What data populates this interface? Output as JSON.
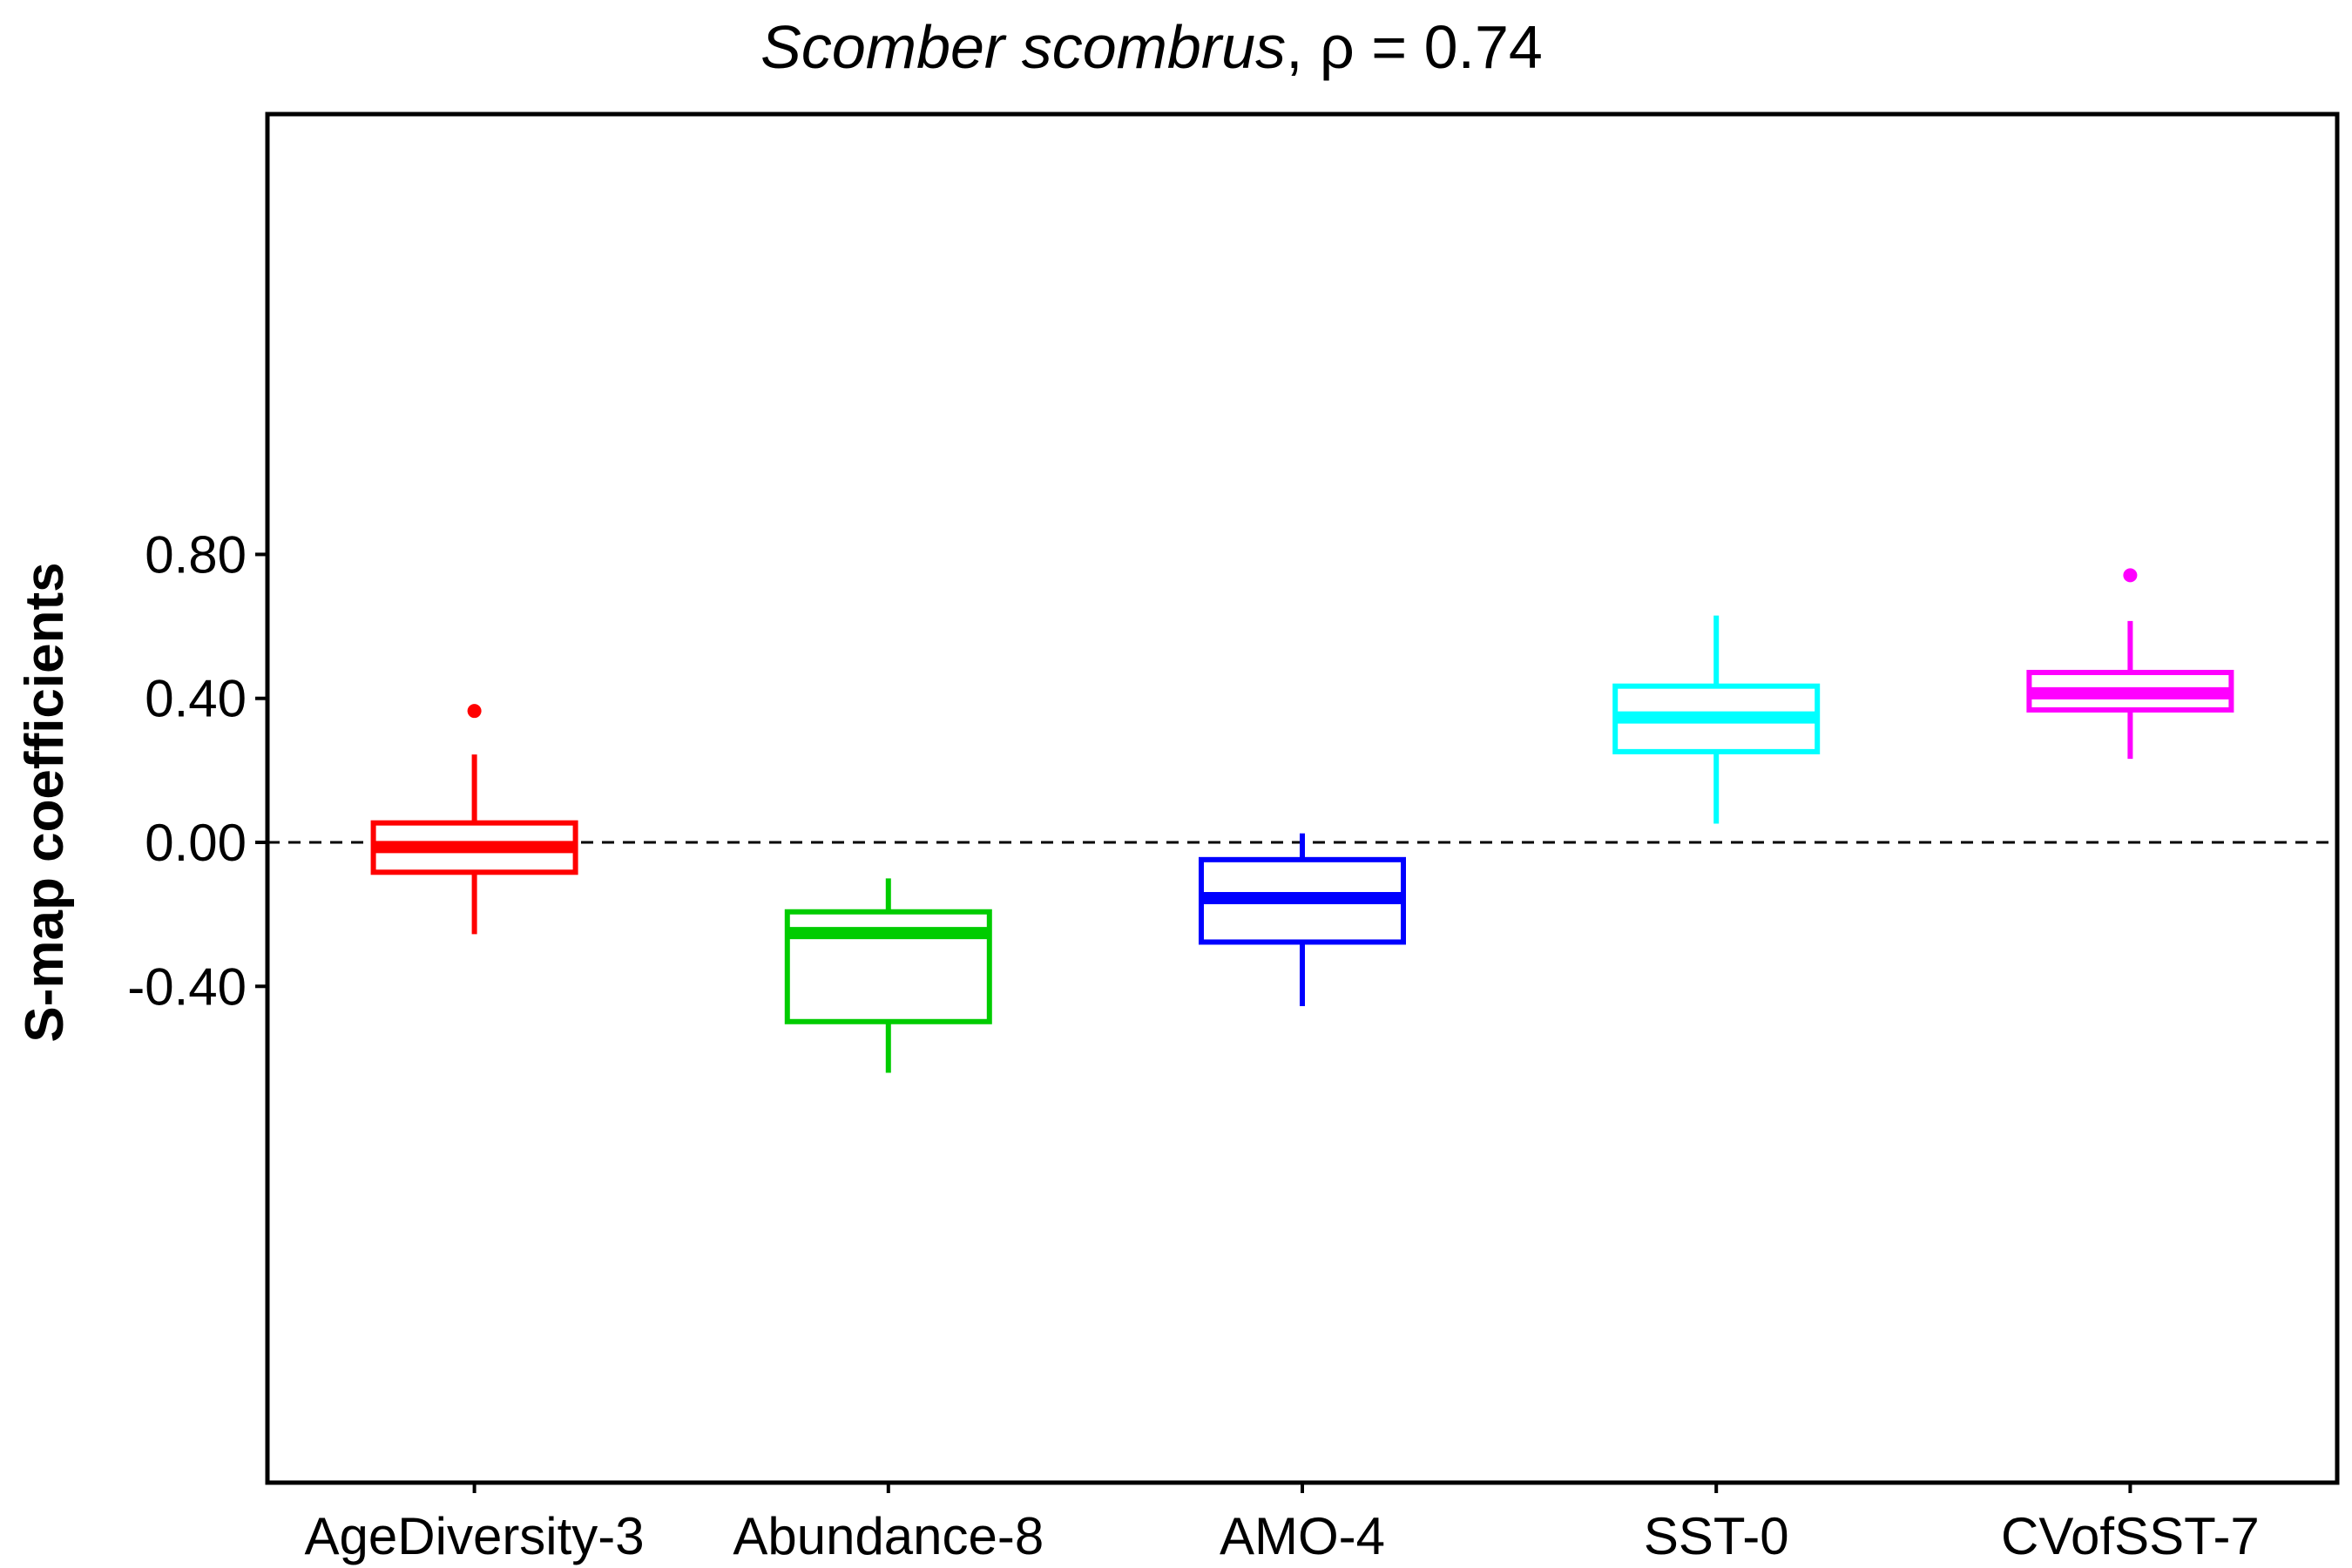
{
  "chart_data": {
    "type": "boxplot",
    "title": {
      "species": "Scomber scombrus",
      "suffix": ", ρ = 0.74"
    },
    "xlabel": "",
    "ylabel": "S-map coefficients",
    "ylim": [
      -0.7,
      0.81
    ],
    "yticks": [
      -0.4,
      0.0,
      0.4,
      0.8
    ],
    "ytick_labels": [
      "-0.40",
      "0.00",
      "0.40",
      "0.80"
    ],
    "reference_line": {
      "y": 0.0,
      "style": "dashed"
    },
    "grid": false,
    "series": [
      {
        "name": "AgeDiversity-3",
        "color": "#ff0000",
        "whisker_low": -0.255,
        "q1": -0.083,
        "median": -0.013,
        "q3": 0.054,
        "whisker_high": 0.244,
        "outliers": [
          0.365
        ]
      },
      {
        "name": "Abundance-8",
        "color": "#00cc00",
        "whisker_low": -0.64,
        "q1": -0.498,
        "median": -0.252,
        "q3": -0.193,
        "whisker_high": -0.1,
        "outliers": []
      },
      {
        "name": "AMO-4",
        "color": "#0000ff",
        "whisker_low": -0.455,
        "q1": -0.277,
        "median": -0.155,
        "q3": -0.048,
        "whisker_high": 0.025,
        "outliers": []
      },
      {
        "name": "SST-0",
        "color": "#00ffff",
        "whisker_low": 0.052,
        "q1": 0.252,
        "median": 0.347,
        "q3": 0.434,
        "whisker_high": 0.63,
        "outliers": []
      },
      {
        "name": "CVofSST-7",
        "color": "#ff00ff",
        "whisker_low": 0.232,
        "q1": 0.368,
        "median": 0.414,
        "q3": 0.472,
        "whisker_high": 0.615,
        "outliers": [
          0.742
        ]
      }
    ]
  }
}
